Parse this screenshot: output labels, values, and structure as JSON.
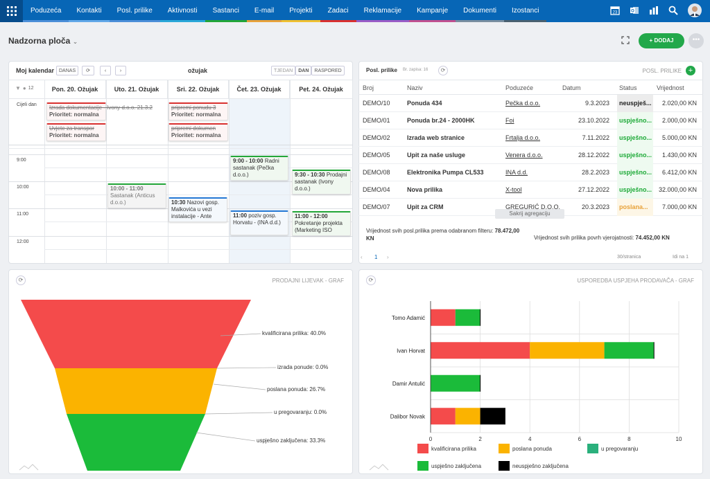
{
  "nav": {
    "items": [
      "Poduzeća",
      "Kontakti",
      "Posl. prilike",
      "Aktivnosti",
      "Sastanci",
      "E-mail",
      "Projekti",
      "Zadaci",
      "Reklamacije",
      "Kampanje",
      "Dokumenti",
      "Izostanci"
    ],
    "colors": [
      "#4c8fd8",
      "#62a8e8",
      "#4c8fd8",
      "#2aa8d8",
      "#22a638",
      "#e8a23a",
      "#f0c030",
      "#d9302f",
      "#9a5cc6",
      "#c05090",
      "#7a8fa0",
      "#4a6070"
    ]
  },
  "page": {
    "title": "Nadzorna ploča",
    "add_label": "+ DODAJ"
  },
  "calendar": {
    "title": "Moj kalendar",
    "today": "DANAS",
    "month": "ožujak",
    "views": [
      "TJEDAN",
      "DAN",
      "RASPORED"
    ],
    "allday": "Cijeli dan",
    "days": [
      "Pon. 20. Ožujak",
      "Uto. 21. Ožujak",
      "Sri. 22. Ožujak",
      "Čet. 23. Ožujak",
      "Pet. 24. Ožujak"
    ],
    "times": [
      "9:00",
      "10:00",
      "11:00",
      "12:00"
    ],
    "count": "12",
    "allday_events": [
      {
        "title": "Izrada dokumentacije - Ivony d.o.o. 21.3.2",
        "sub": "Prioritet: normalna"
      },
      {
        "title": "Uvjete za transpor",
        "sub": "Prioritet: normalna"
      },
      {
        "title": "pripremi ponudu 3",
        "sub": "Prioritet: normalna"
      },
      {
        "title": "pripremi dokumen",
        "sub": "Prioritet: normalna"
      }
    ],
    "events": [
      {
        "time": "9:00 - 10:00",
        "text": "Radni sastanak (Pečka d.o.o.)"
      },
      {
        "time": "9:30 - 10:30",
        "text": "Prodajni sastanak (Ivony d.o.o.)"
      },
      {
        "time": "10:00 - 11:00",
        "text": "Sastanak (Anticus d.o.o.)"
      },
      {
        "time": "10:30",
        "text": "Nazovi gosp. Malkovića u vezi instalacije - Ante"
      },
      {
        "time": "11:00",
        "text": "poziv gosp. Horvatu - (INA d.d.)"
      },
      {
        "time": "11:00 - 12:00",
        "text": "Pokretanje projekta (Marketing ISO"
      }
    ]
  },
  "deals": {
    "title": "Posl. prilike",
    "count": "Br. zapisa: 16",
    "panel_label": "POSL. PRILIKE",
    "columns": [
      "Broj",
      "Naziv",
      "Poduzeće",
      "Datum",
      "Status",
      "Vrijednost"
    ],
    "rows": [
      [
        "DEMO/10",
        "Ponuda 434",
        "Pečka d.o.o.",
        "9.3.2023",
        "neuspješ...",
        "2.020,00 KN"
      ],
      [
        "DEMO/01",
        "Ponuda br.24 - 2000HK",
        "Foi",
        "23.10.2022",
        "uspješno...",
        "2.000,00 KN"
      ],
      [
        "DEMO/02",
        "Izrada web stranice",
        "Frtalja d.o.o.",
        "7.11.2022",
        "uspješno...",
        "5.000,00 KN"
      ],
      [
        "DEMO/05",
        "Upit za naše usluge",
        "Venera d.o.o.",
        "28.12.2022",
        "uspješno...",
        "1.430,00 KN"
      ],
      [
        "DEMO/08",
        "Elektronika Pumpa CL533",
        "INA d.d.",
        "28.2.2023",
        "uspješno...",
        "6.412,00 KN"
      ],
      [
        "DEMO/04",
        "Nova prilika",
        "X-tool",
        "27.12.2022",
        "uspješno...",
        "32.000,00 KN"
      ],
      [
        "DEMO/07",
        "Upit za CRM",
        "GREGURIĆ D.O.O.",
        "20.3.2023",
        "poslana...",
        "7.000,00 KN"
      ]
    ],
    "hide_agg": "Sakrij agregaciju",
    "sum_filtered_label": "Vrijednost svih posl.prilika prema odabranom filteru:",
    "sum_filtered": "78.472,00",
    "sum_filtered_unit": "KN",
    "sum_weighted_label": "Vrijednost svih prilika povrh vjerojatnosti:",
    "sum_weighted": "74.452,00 KN",
    "page": "1",
    "per_page": "30/stranica",
    "total": "Idi na 1"
  },
  "funnel": {
    "title": "PRODAJNI LIJEVAK - GRAF",
    "labels": [
      "kvalificirana prilika: 40.0%",
      "izrada ponude: 0.0%",
      "poslana ponuda: 26.7%",
      "u pregovaranju: 0.0%",
      "uspješno zaključena: 33.3%"
    ]
  },
  "chart_data": {
    "type": "bar",
    "title": "USPOREDBA USPJEHA PRODAVAČA - GRAF",
    "categories": [
      "Tomo Adamić",
      "Ivan Horvat",
      "Damir Antulić",
      "Dalibor Novak"
    ],
    "xlim": [
      0,
      10
    ],
    "xticks": [
      "0",
      "2",
      "4",
      "6",
      "8",
      "10"
    ],
    "series": [
      {
        "name": "kvalificirana prilika",
        "color": "#f44b4b",
        "values": [
          1,
          4,
          0,
          1
        ]
      },
      {
        "name": "poslana ponuda",
        "color": "#fbb300",
        "values": [
          0,
          3,
          0,
          1
        ]
      },
      {
        "name": "u pregovaranju",
        "color": "#2ab07c",
        "values": [
          0,
          0,
          0,
          0
        ]
      },
      {
        "name": "uspješno zaključena",
        "color": "#1bbb3a",
        "values": [
          1,
          2,
          2,
          0
        ]
      },
      {
        "name": "neuspješno zaključena",
        "color": "#000000",
        "values": [
          0,
          0,
          0,
          1
        ]
      }
    ]
  }
}
